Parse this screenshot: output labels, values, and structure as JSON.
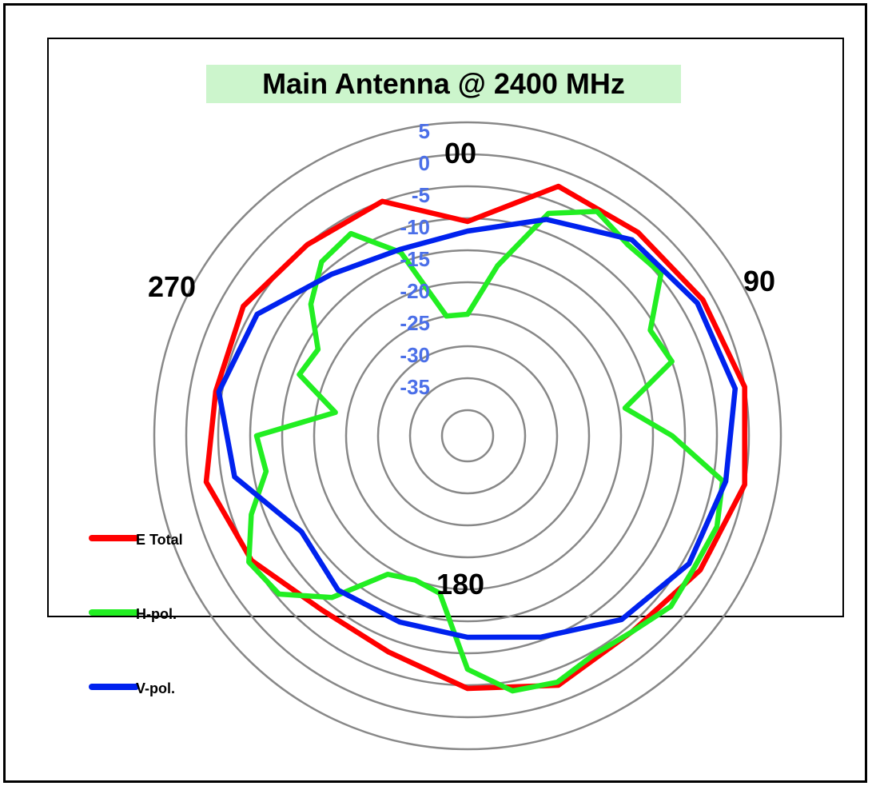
{
  "chart_data": {
    "type": "radar",
    "title": "Main Antenna @ 2400 MHz",
    "title_background": "#ccf5cc",
    "angle_labels": {
      "top": "00",
      "right": "90",
      "bottom": "180",
      "left": "270"
    },
    "radial_tick_labels": [
      "5",
      "0",
      "-5",
      "-10",
      "-15",
      "-20",
      "-25",
      "-30",
      "-35"
    ],
    "radial_range": [
      -40,
      5
    ],
    "radial_label_color": "#4b6fe8",
    "grid_color": "#888888",
    "series": [
      {
        "name": "E Total",
        "color": "#ff0000",
        "angles": [
          0,
          20,
          40,
          60,
          80,
          100,
          120,
          140,
          160,
          180,
          200,
          220,
          240,
          260,
          280,
          300,
          320,
          340
        ],
        "values": [
          -10.5,
          -2.5,
          -2.5,
          -1.5,
          0,
          0,
          -2,
          -4,
          -2.5,
          -4.5,
          -8,
          -8.5,
          -5,
          -2.5,
          -4,
          -3.5,
          -5,
          -5
        ]
      },
      {
        "name": "H-pol.",
        "color": "#22ee22",
        "angles": [
          0,
          10,
          20,
          30,
          40,
          50,
          60,
          70,
          80,
          90,
          100,
          110,
          120,
          130,
          140,
          150,
          160,
          170,
          180,
          190,
          200,
          210,
          220,
          230,
          240,
          250,
          260,
          270,
          280,
          290,
          300,
          310,
          320,
          330,
          340,
          350
        ],
        "values": [
          -25,
          -17,
          -7,
          -3.5,
          -5,
          -4.5,
          -11,
          -10,
          -19,
          -12,
          -3.5,
          -2.5,
          -3,
          -2.5,
          -4,
          -4.5,
          -3,
          -3.5,
          -7.5,
          -19,
          -20,
          -19,
          -11,
          -5.5,
          -4.5,
          -8,
          -12,
          -11,
          -23,
          -16,
          -17,
          -12,
          -8.5,
          -7.5,
          -13.5,
          -25
        ]
      },
      {
        "name": "V-pol.",
        "color": "#0022ee",
        "angles": [
          0,
          20,
          40,
          60,
          80,
          100,
          120,
          140,
          160,
          180,
          200,
          220,
          240,
          260,
          280,
          300,
          320,
          340
        ],
        "values": [
          -12,
          -8,
          -4,
          -2.5,
          -1.5,
          -3,
          -4,
          -6.5,
          -10.5,
          -12.5,
          -13,
          -12.5,
          -14,
          -7,
          -4.5,
          -6,
          -11,
          -13
        ]
      }
    ],
    "legend_position": "left"
  }
}
